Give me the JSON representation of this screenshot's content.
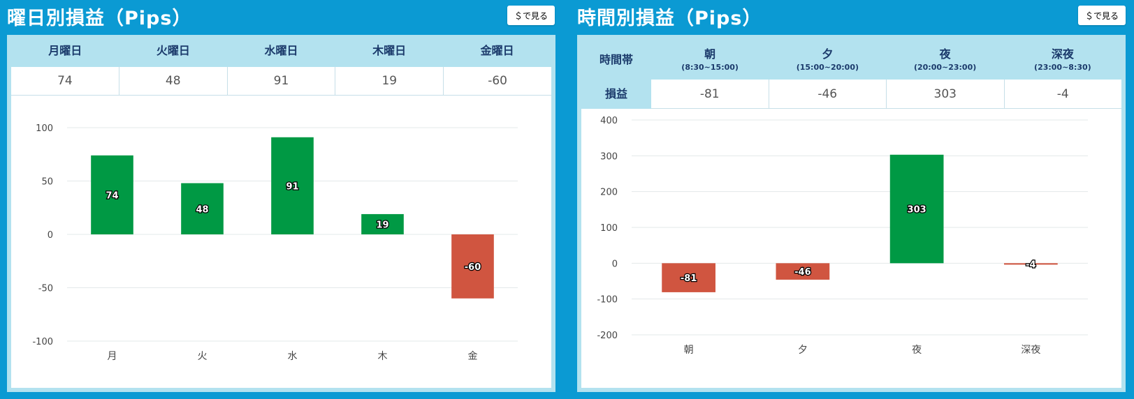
{
  "left": {
    "title": "曜日別損益（Pips）",
    "button_label": "＄で見る",
    "table": {
      "headers": [
        "月曜日",
        "火曜日",
        "水曜日",
        "木曜日",
        "金曜日"
      ],
      "values": [
        "74",
        "48",
        "91",
        "19",
        "-60"
      ]
    }
  },
  "right": {
    "title": "時間別損益（Pips）",
    "button_label": "＄で見る",
    "table": {
      "row_header": "時間帯",
      "value_row_label": "損益",
      "columns": [
        {
          "name": "朝",
          "range": "(8:30~15:00)"
        },
        {
          "name": "夕",
          "range": "(15:00~20:00)"
        },
        {
          "name": "夜",
          "range": "(20:00~23:00)"
        },
        {
          "name": "深夜",
          "range": "(23:00~8:30)"
        }
      ],
      "values": [
        "-81",
        "-46",
        "303",
        "-4"
      ]
    }
  },
  "colors": {
    "positive": "#009944",
    "negative": "#d05540",
    "background": "#0b9ad3",
    "table_header": "#b3e2ef"
  },
  "chart_data": [
    {
      "type": "bar",
      "categories": [
        "月",
        "火",
        "水",
        "木",
        "金"
      ],
      "values": [
        74,
        48,
        91,
        19,
        -60
      ],
      "ylim": [
        -100,
        100
      ],
      "yticks": [
        100,
        50,
        0,
        -50,
        -100
      ],
      "grid": true
    },
    {
      "type": "bar",
      "categories": [
        "朝",
        "夕",
        "夜",
        "深夜"
      ],
      "values": [
        -81,
        -46,
        303,
        -4
      ],
      "ylim": [
        -200,
        400
      ],
      "yticks": [
        400,
        300,
        200,
        100,
        0,
        -100,
        -200
      ],
      "grid": true
    }
  ]
}
